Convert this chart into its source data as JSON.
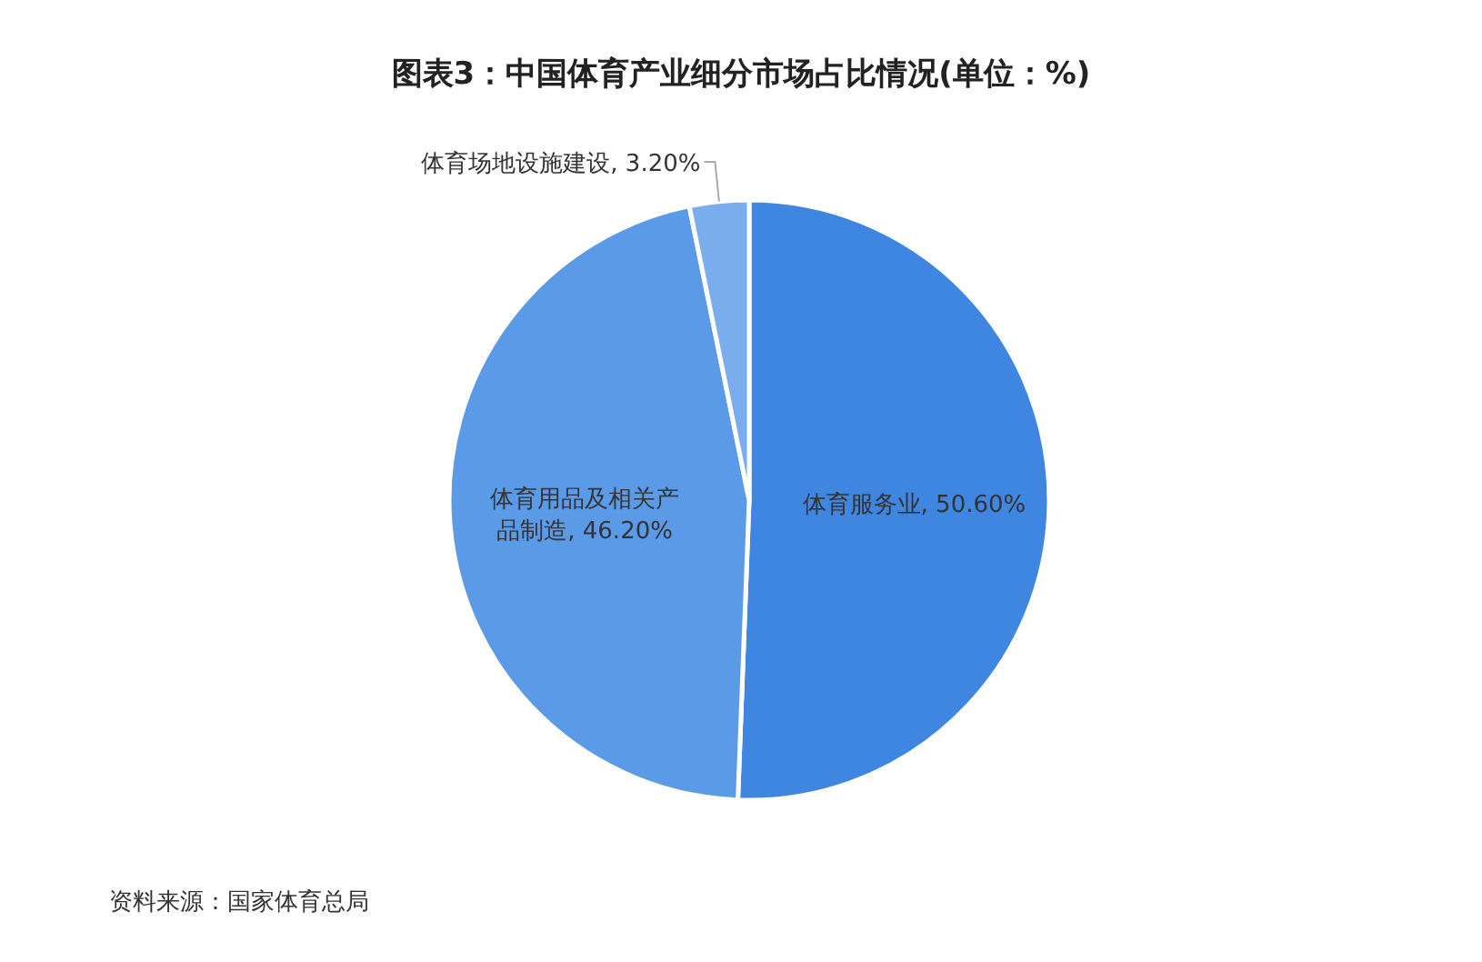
{
  "chart_data": {
    "type": "pie",
    "title": "图表3：中国体育产业细分市场占比情况(单位：%)",
    "categories": [
      "体育服务业",
      "体育用品及相关产品制造",
      "体育场地设施建设"
    ],
    "values": [
      50.6,
      46.2,
      3.2
    ],
    "value_labels": [
      "50.60%",
      "46.20%",
      "3.20%"
    ],
    "colors": [
      "#3f86e0",
      "#5b9ae6",
      "#79aded"
    ],
    "annotations": [
      "资料来源：国家体育总局"
    ]
  }
}
